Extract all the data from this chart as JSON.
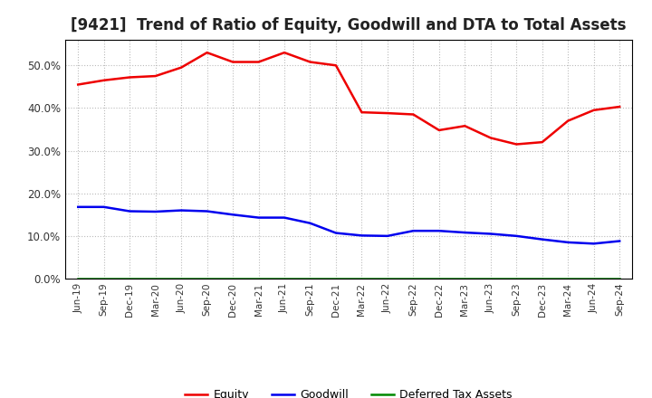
{
  "title": "[9421]  Trend of Ratio of Equity, Goodwill and DTA to Total Assets",
  "x_labels": [
    "Jun-19",
    "Sep-19",
    "Dec-19",
    "Mar-20",
    "Jun-20",
    "Sep-20",
    "Dec-20",
    "Mar-21",
    "Jun-21",
    "Sep-21",
    "Dec-21",
    "Mar-22",
    "Jun-22",
    "Sep-22",
    "Dec-22",
    "Mar-23",
    "Jun-23",
    "Sep-23",
    "Dec-23",
    "Mar-24",
    "Jun-24",
    "Sep-24"
  ],
  "equity": [
    0.455,
    0.465,
    0.472,
    0.475,
    0.495,
    0.53,
    0.508,
    0.508,
    0.53,
    0.508,
    0.5,
    0.39,
    0.388,
    0.385,
    0.348,
    0.358,
    0.33,
    0.315,
    0.32,
    0.37,
    0.395,
    0.403
  ],
  "goodwill": [
    0.168,
    0.168,
    0.158,
    0.157,
    0.16,
    0.158,
    0.15,
    0.143,
    0.143,
    0.13,
    0.107,
    0.101,
    0.1,
    0.112,
    0.112,
    0.108,
    0.105,
    0.1,
    0.092,
    0.085,
    0.082,
    0.088
  ],
  "dta": [
    0.001,
    0.001,
    0.001,
    0.001,
    0.001,
    0.001,
    0.001,
    0.001,
    0.001,
    0.001,
    0.001,
    0.001,
    0.001,
    0.001,
    0.001,
    0.001,
    0.001,
    0.001,
    0.001,
    0.001,
    0.001,
    0.001
  ],
  "equity_color": "#EE0000",
  "goodwill_color": "#0000EE",
  "dta_color": "#008800",
  "ylim": [
    0.0,
    0.56
  ],
  "yticks": [
    0.0,
    0.1,
    0.2,
    0.3,
    0.4,
    0.5
  ],
  "background_color": "#FFFFFF",
  "plot_bg_color": "#FFFFFF",
  "grid_color": "#BBBBBB",
  "title_fontsize": 12,
  "legend_labels": [
    "Equity",
    "Goodwill",
    "Deferred Tax Assets"
  ],
  "linewidth": 1.8
}
